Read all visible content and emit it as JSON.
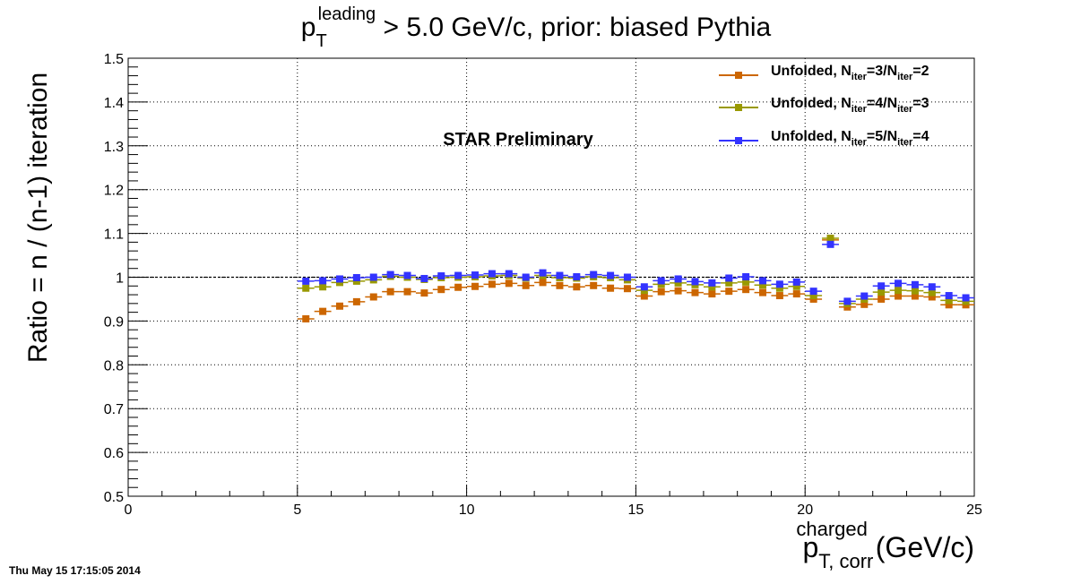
{
  "chart_data": {
    "type": "scatter",
    "title": {
      "pre": "p",
      "sup": "leading",
      "sub": "T",
      "post": " > 5.0 GeV/c, prior: biased Pythia"
    },
    "ylabel": "Ratio = n / (n-1) iteration",
    "xlabel": {
      "pre": "p",
      "sup": "charged",
      "sub": "T, corr",
      "post": " (GeV/c)"
    },
    "xlim": [
      0,
      25
    ],
    "ylim": [
      0.5,
      1.5
    ],
    "xticks": [
      "0",
      "5",
      "10",
      "15",
      "20",
      "25"
    ],
    "yticks": [
      "0.5",
      "0.6",
      "0.7",
      "0.8",
      "0.9",
      "1",
      "1.1",
      "1.2",
      "1.3",
      "1.4",
      "1.5"
    ],
    "grid": true,
    "reference_line": 1.0,
    "annotation": "STAR Preliminary",
    "legend_position": "top-right",
    "x": [
      5.25,
      5.75,
      6.25,
      6.75,
      7.25,
      7.75,
      8.25,
      8.75,
      9.25,
      9.75,
      10.25,
      10.75,
      11.25,
      11.75,
      12.25,
      12.75,
      13.25,
      13.75,
      14.25,
      14.75,
      15.25,
      15.75,
      16.25,
      16.75,
      17.25,
      17.75,
      18.25,
      18.75,
      19.25,
      19.75,
      20.25,
      20.75,
      21.25,
      21.75,
      22.25,
      22.75,
      23.25,
      23.75,
      24.25,
      24.75
    ],
    "series": [
      {
        "legend": {
          "pre": "Unfolded, N",
          "sub1": "iter",
          "mid": "=3/N",
          "sub2": "iter",
          "post": "=2"
        },
        "color": "#cc6600",
        "values": [
          0.905,
          0.922,
          0.934,
          0.944,
          0.955,
          0.967,
          0.967,
          0.964,
          0.972,
          0.977,
          0.979,
          0.984,
          0.986,
          0.981,
          0.988,
          0.981,
          0.978,
          0.981,
          0.975,
          0.974,
          0.957,
          0.967,
          0.969,
          0.965,
          0.962,
          0.968,
          0.972,
          0.965,
          0.958,
          0.962,
          0.95,
          1.085,
          0.932,
          0.938,
          0.95,
          0.957,
          0.957,
          0.955,
          0.937,
          0.937
        ]
      },
      {
        "legend": {
          "pre": "Unfolded, N",
          "sub1": "iter",
          "mid": "=4/N",
          "sub2": "iter",
          "post": "=3"
        },
        "color": "#999900",
        "values": [
          0.975,
          0.978,
          0.988,
          0.991,
          0.994,
          1.002,
          1.0,
          0.995,
          0.999,
          1.0,
          1.001,
          1.003,
          1.004,
          0.998,
          1.004,
          0.999,
          0.998,
          1.001,
          0.999,
          0.994,
          0.97,
          0.984,
          0.987,
          0.983,
          0.978,
          0.987,
          0.989,
          0.982,
          0.975,
          0.979,
          0.958,
          1.089,
          0.94,
          0.95,
          0.966,
          0.97,
          0.969,
          0.965,
          0.947,
          0.945
        ]
      },
      {
        "legend": {
          "pre": "Unfolded, N",
          "sub1": "iter",
          "mid": "=5/N",
          "sub2": "iter",
          "post": "=4"
        },
        "color": "#3333ff",
        "values": [
          0.991,
          0.992,
          0.996,
          0.999,
          1.0,
          1.006,
          1.004,
          0.997,
          1.003,
          1.004,
          1.005,
          1.008,
          1.008,
          1.0,
          1.01,
          1.004,
          1.001,
          1.006,
          1.004,
          1.0,
          0.978,
          0.992,
          0.996,
          0.99,
          0.987,
          0.998,
          1.001,
          0.992,
          0.984,
          0.989,
          0.968,
          1.075,
          0.945,
          0.957,
          0.98,
          0.986,
          0.983,
          0.978,
          0.958,
          0.953
        ]
      }
    ]
  },
  "timestamp": "Thu May 15 17:15:05 2014"
}
